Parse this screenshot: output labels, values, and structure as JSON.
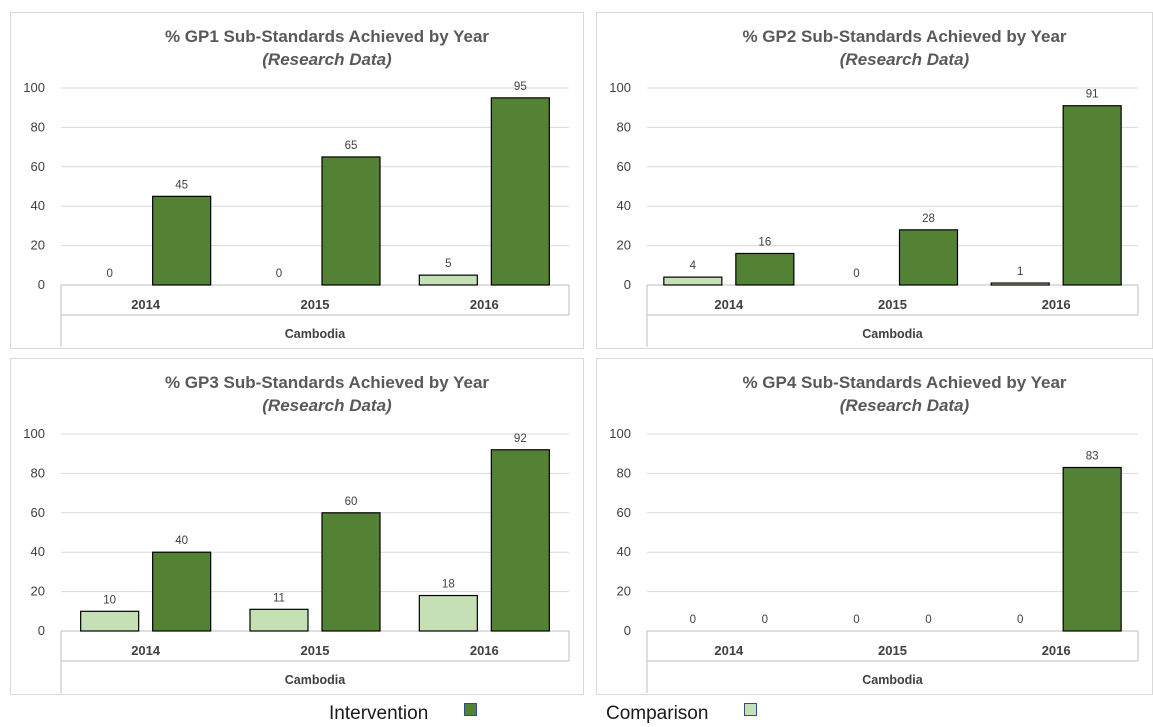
{
  "chart_data": [
    {
      "type": "bar",
      "title": "% GP1 Sub-Standards Achieved by Year",
      "subtitle": "(Research Data)",
      "categories": [
        "2014",
        "2015",
        "2016"
      ],
      "group_label": "Cambodia",
      "series": [
        {
          "name": "Comparison",
          "values": [
            0,
            0,
            5
          ],
          "color": "#c5e0b4"
        },
        {
          "name": "Intervention",
          "values": [
            45,
            65,
            95
          ],
          "color": "#548235"
        }
      ],
      "ylim": [
        0,
        100
      ],
      "yticks": [
        0,
        20,
        40,
        60,
        80,
        100
      ],
      "grid": true
    },
    {
      "type": "bar",
      "title": "% GP2 Sub-Standards Achieved by Year",
      "subtitle": "(Research Data)",
      "categories": [
        "2014",
        "2015",
        "2016"
      ],
      "group_label": "Cambodia",
      "series": [
        {
          "name": "Comparison",
          "values": [
            4,
            0,
            1
          ],
          "color": "#c5e0b4"
        },
        {
          "name": "Intervention",
          "values": [
            16,
            28,
            91
          ],
          "color": "#548235"
        }
      ],
      "ylim": [
        0,
        100
      ],
      "yticks": [
        0,
        20,
        40,
        60,
        80,
        100
      ],
      "grid": true
    },
    {
      "type": "bar",
      "title": "% GP3 Sub-Standards Achieved by Year",
      "subtitle": "(Research Data)",
      "categories": [
        "2014",
        "2015",
        "2016"
      ],
      "group_label": "Cambodia",
      "series": [
        {
          "name": "Comparison",
          "values": [
            10,
            11,
            18
          ],
          "color": "#c5e0b4"
        },
        {
          "name": "Intervention",
          "values": [
            40,
            60,
            92
          ],
          "color": "#548235"
        }
      ],
      "ylim": [
        0,
        100
      ],
      "yticks": [
        0,
        20,
        40,
        60,
        80,
        100
      ],
      "grid": true
    },
    {
      "type": "bar",
      "title": "% GP4 Sub-Standards Achieved by Year",
      "subtitle": "(Research Data)",
      "categories": [
        "2014",
        "2015",
        "2016"
      ],
      "group_label": "Cambodia",
      "series": [
        {
          "name": "Comparison",
          "values": [
            0,
            0,
            0
          ],
          "color": "#c5e0b4"
        },
        {
          "name": "Intervention",
          "values": [
            0,
            0,
            83
          ],
          "color": "#548235"
        }
      ],
      "ylim": [
        0,
        100
      ],
      "yticks": [
        0,
        20,
        40,
        60,
        80,
        100
      ],
      "grid": true
    }
  ],
  "legend": {
    "placement": "bottom",
    "items": [
      {
        "label": "Intervention",
        "color": "#548235"
      },
      {
        "label": "Comparison",
        "color": "#c5e0b4"
      }
    ]
  }
}
